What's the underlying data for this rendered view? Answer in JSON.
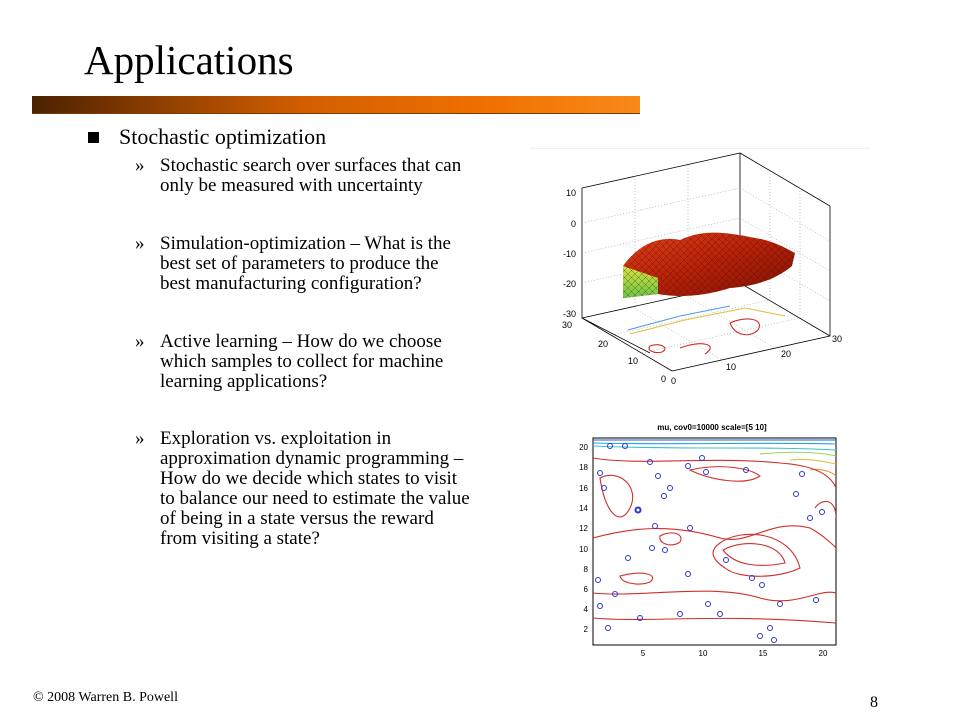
{
  "slide": {
    "title": "Applications",
    "bullet": "Stochastic optimization",
    "sub_marker": "»",
    "sub_items": [
      "Stochastic search over surfaces that can only be measured with uncertainty",
      "Simulation-optimization – What is the best set of parameters to produce the best manufacturing configuration?",
      "Active learning – How do we choose which samples to collect for machine learning applications?",
      "Exploration vs. exploitation in approximation dynamic programming – How do we decide which states to visit to balance our need to estimate the value of being in a state versus the reward from visiting a state?"
    ],
    "footer": "© 2008 Warren B. Powell",
    "page_number": "8"
  },
  "figure3d": {
    "z_ticks": [
      "10",
      "0",
      "-10",
      "-20",
      "-30"
    ],
    "left_axis_ticks": [
      "30",
      "20",
      "10",
      "0"
    ],
    "right_axis_ticks": [
      "0",
      "10",
      "20",
      "30"
    ],
    "surface_color": "#c0280a",
    "surface_highlight": "#7cd84a"
  },
  "contour": {
    "title": "mu, cov0=10000 scale=[5 10]",
    "y_ticks": [
      "20",
      "18",
      "16",
      "14",
      "12",
      "10",
      "8",
      "6",
      "4",
      "2"
    ],
    "x_ticks": [
      "5",
      "10",
      "15",
      "20"
    ],
    "point_color": "#2b36d6",
    "line_color": "#d0302a"
  }
}
